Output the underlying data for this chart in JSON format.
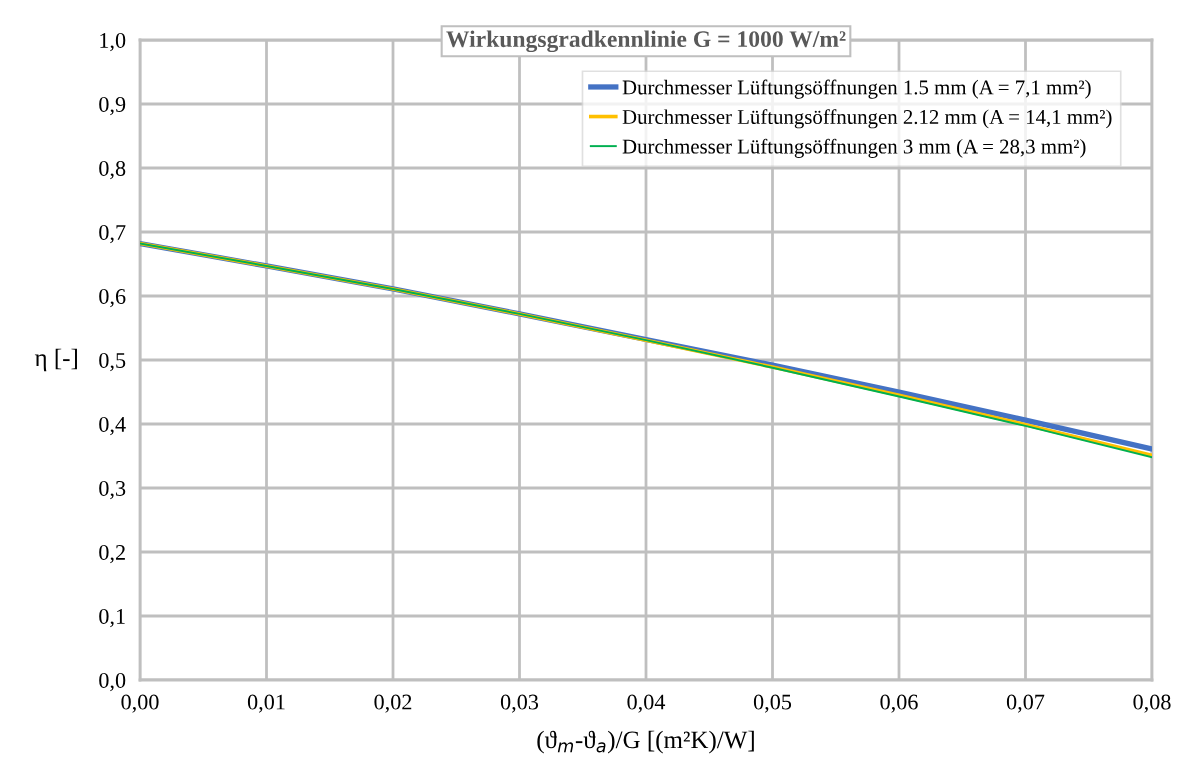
{
  "chart_data": {
    "type": "line",
    "title": "Wirkungsgradkennlinie G = 1000 W/m²",
    "xlabel": "(ϑ$_{m}$-ϑ$_{a}$)/G [(m²K)/W]",
    "ylabel": "η [-]",
    "x": [
      0,
      0.01,
      0.02,
      0.03,
      0.04,
      0.05,
      0.06,
      0.07,
      0.08
    ],
    "series": [
      {
        "name": "Durchmesser Lüftungsöffnungen 1.5 mm (A = 7,1 mm²)",
        "color": "#4472c4",
        "values": [
          0.682,
          0.647,
          0.611,
          0.572,
          0.532,
          0.492,
          0.45,
          0.406,
          0.361
        ]
      },
      {
        "name": "Durchmesser Lüftungsöffnungen 2.12 mm (A = 14,1 mm²)",
        "color": "#ffc000",
        "values": [
          0.682,
          0.647,
          0.611,
          0.572,
          0.531,
          0.489,
          0.445,
          0.399,
          0.351
        ]
      },
      {
        "name": "Durchmesser Lüftungsöffnungen 3 mm (A = 28,3 mm²)",
        "color": "#00b050",
        "values": [
          0.682,
          0.647,
          0.611,
          0.572,
          0.531,
          0.488,
          0.443,
          0.397,
          0.348
        ]
      }
    ],
    "xlim": [
      0,
      0.08
    ],
    "xticks": [
      {
        "value": 0,
        "label": "0,00"
      },
      {
        "value": 0.01,
        "label": "0,01"
      },
      {
        "value": 0.02,
        "label": "0,02"
      },
      {
        "value": 0.03,
        "label": "0,03"
      },
      {
        "value": 0.04,
        "label": "0,04"
      },
      {
        "value": 0.05,
        "label": "0,05"
      },
      {
        "value": 0.06,
        "label": "0,06"
      },
      {
        "value": 0.07,
        "label": "0,07"
      },
      {
        "value": 0.08,
        "label": "0,08"
      }
    ],
    "ylim": [
      0,
      1
    ],
    "yticks": [
      {
        "value": 0,
        "label": "0,0"
      },
      {
        "value": 0.1,
        "label": "0,1"
      },
      {
        "value": 0.2,
        "label": "0,2"
      },
      {
        "value": 0.3,
        "label": "0,3"
      },
      {
        "value": 0.4,
        "label": "0,4"
      },
      {
        "value": 0.5,
        "label": "0,5"
      },
      {
        "value": 0.6,
        "label": "0,6"
      },
      {
        "value": 0.7,
        "label": "0,7"
      },
      {
        "value": 0.8,
        "label": "0,8"
      },
      {
        "value": 0.9,
        "label": "0,9"
      },
      {
        "value": 1,
        "label": "1,0"
      }
    ],
    "grid": true,
    "legend": "top right",
    "marker": "none",
    "line_style": "solid"
  }
}
